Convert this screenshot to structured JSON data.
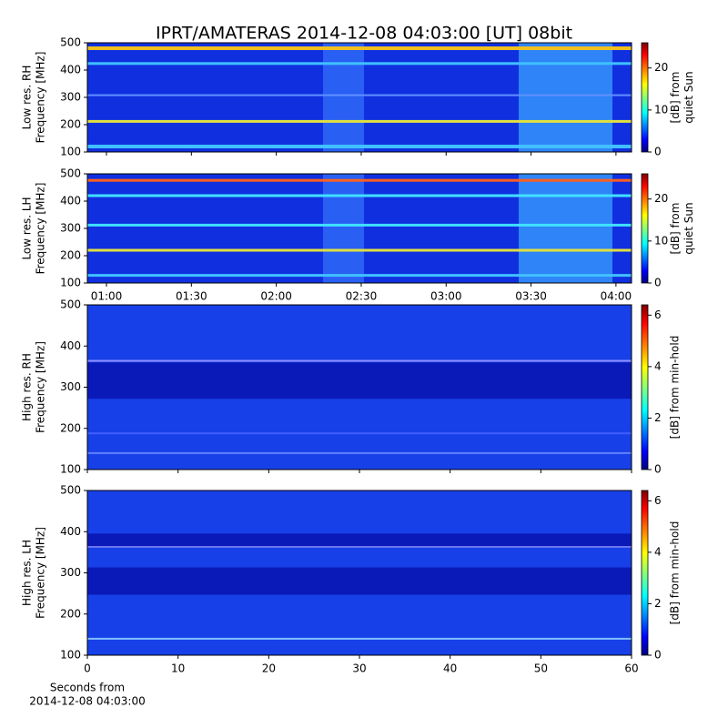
{
  "title": "IPRT/AMATERAS 2014-12-08 04:03:00 [UT]   08bit",
  "chart_data": [
    {
      "type": "spectrogram",
      "ylabel": [
        "Low res. RH",
        "Frequency [MHz]"
      ],
      "ylim": [
        100,
        500
      ],
      "yticks": [
        100,
        200,
        300,
        400,
        500
      ],
      "xlim": [
        53.25,
        245.5
      ],
      "colorbar": {
        "label": [
          "[dB] from",
          "quiet Sun"
        ],
        "lim": [
          0,
          26
        ],
        "ticks": [
          0,
          10,
          20
        ]
      }
    },
    {
      "type": "spectrogram",
      "ylabel": [
        "Low res. LH",
        "Frequency [MHz]"
      ],
      "ylim": [
        100,
        500
      ],
      "yticks": [
        100,
        200,
        300,
        400,
        500
      ],
      "xlim": [
        53.25,
        245.5
      ],
      "xticks": [
        {
          "value": 60,
          "label": "01:00"
        },
        {
          "value": 90,
          "label": "01:30"
        },
        {
          "value": 120,
          "label": "02:00"
        },
        {
          "value": 150,
          "label": "02:30"
        },
        {
          "value": 180,
          "label": "03:00"
        },
        {
          "value": 210,
          "label": "03:30"
        },
        {
          "value": 240,
          "label": "04:00"
        }
      ],
      "colorbar": {
        "label": [
          "[dB] from",
          "quiet Sun"
        ],
        "lim": [
          0,
          26
        ],
        "ticks": [
          0,
          10,
          20
        ]
      }
    },
    {
      "type": "spectrogram",
      "ylabel": [
        "High res. RH",
        "Frequency [MHz]"
      ],
      "ylim": [
        100,
        500
      ],
      "yticks": [
        100,
        200,
        300,
        400,
        500
      ],
      "xlim": [
        0,
        60
      ],
      "colorbar": {
        "label": [
          "[dB] from min-hold"
        ],
        "lim": [
          0,
          6.4
        ],
        "ticks": [
          0,
          2,
          4,
          6
        ]
      }
    },
    {
      "type": "spectrogram",
      "ylabel": [
        "High res. LH",
        "Frequency [MHz]"
      ],
      "ylim": [
        100,
        500
      ],
      "yticks": [
        100,
        200,
        300,
        400,
        500
      ],
      "xlim": [
        0,
        60
      ],
      "xticks": [
        0,
        10,
        20,
        30,
        40,
        50,
        60
      ],
      "xlabel": [
        "Seconds from",
        "2014-12-08 04:03:00"
      ],
      "colorbar": {
        "label": [
          "[dB] from min-hold"
        ],
        "lim": [
          0,
          6.4
        ],
        "ticks": [
          0,
          2,
          4,
          6
        ]
      }
    }
  ]
}
